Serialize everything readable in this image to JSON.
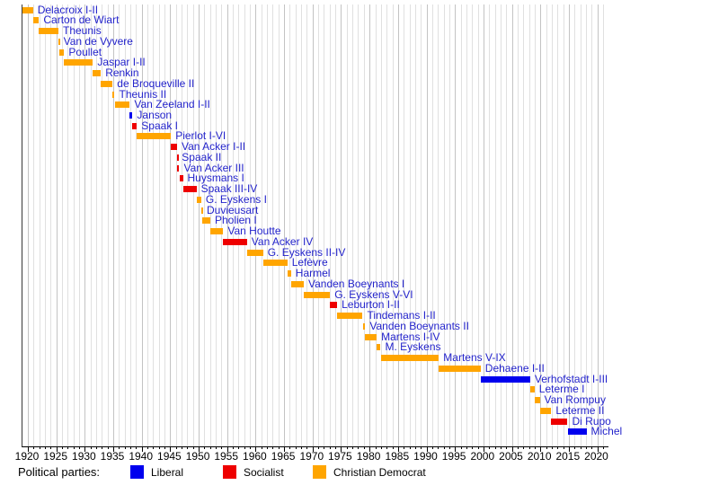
{
  "chart_data": {
    "type": "gantt",
    "title": "",
    "xlabel": "",
    "ylabel": "",
    "xlim": [
      1919.05,
      2021.97
    ],
    "grid": "vertical, every year; darker every 5 years",
    "x_tick_labels": [
      1920,
      1925,
      1930,
      1935,
      1940,
      1945,
      1950,
      1955,
      1960,
      1965,
      1970,
      1975,
      1980,
      1985,
      1990,
      1995,
      2000,
      2005,
      2010,
      2015,
      2020
    ],
    "x_minor_tick_interval_years": 1,
    "party_colors": {
      "Liberal": "#0000ee",
      "Socialist": "#ee0000",
      "Christian Democrat": "#ffa500"
    },
    "bar_label_color": "#2323cb",
    "legend": {
      "title": "Political parties:",
      "position": "bottom",
      "entries": [
        {
          "label": "Liberal",
          "color": "#0000ee"
        },
        {
          "label": "Socialist",
          "color": "#ee0000"
        },
        {
          "label": "Christian Democrat",
          "color": "#ffa500"
        }
      ]
    },
    "governments": [
      {
        "label": "Delacroix I-II",
        "party": "Christian Democrat",
        "start": 1918.89,
        "end": 1920.89
      },
      {
        "label": "Carton de Wiart",
        "party": "Christian Democrat",
        "start": 1920.89,
        "end": 1921.96
      },
      {
        "label": "Theunis",
        "party": "Christian Democrat",
        "start": 1921.96,
        "end": 1925.36
      },
      {
        "label": "Van de Vyvere",
        "party": "Christian Democrat",
        "start": 1925.36,
        "end": 1925.46
      },
      {
        "label": "Poullet",
        "party": "Christian Democrat",
        "start": 1925.46,
        "end": 1926.38
      },
      {
        "label": "Jaspar I-II",
        "party": "Christian Democrat",
        "start": 1926.38,
        "end": 1931.43
      },
      {
        "label": "Renkin",
        "party": "Christian Democrat",
        "start": 1931.43,
        "end": 1932.81
      },
      {
        "label": "de Broqueville II",
        "party": "Christian Democrat",
        "start": 1932.81,
        "end": 1934.89
      },
      {
        "label": "Theunis II",
        "party": "Christian Democrat",
        "start": 1934.89,
        "end": 1935.23
      },
      {
        "label": "Van Zeeland I-II",
        "party": "Christian Democrat",
        "start": 1935.23,
        "end": 1937.9
      },
      {
        "label": "Janson",
        "party": "Liberal",
        "start": 1937.9,
        "end": 1938.37
      },
      {
        "label": "Spaak I",
        "party": "Socialist",
        "start": 1938.37,
        "end": 1939.15
      },
      {
        "label": "Pierlot I-VI",
        "party": "Christian Democrat",
        "start": 1939.15,
        "end": 1945.12
      },
      {
        "label": "Van Acker I-II",
        "party": "Socialist",
        "start": 1945.12,
        "end": 1946.2
      },
      {
        "label": "Spaak II",
        "party": "Socialist",
        "start": 1946.2,
        "end": 1946.25
      },
      {
        "label": "Van Acker III",
        "party": "Socialist",
        "start": 1946.25,
        "end": 1946.59
      },
      {
        "label": "Huysmans I",
        "party": "Socialist",
        "start": 1946.59,
        "end": 1947.22
      },
      {
        "label": "Spaak III-IV",
        "party": "Socialist",
        "start": 1947.22,
        "end": 1949.61
      },
      {
        "label": "G. Eyskens I",
        "party": "Christian Democrat",
        "start": 1949.61,
        "end": 1950.44
      },
      {
        "label": "Duvieusart",
        "party": "Christian Democrat",
        "start": 1950.44,
        "end": 1950.62
      },
      {
        "label": "Pholien I",
        "party": "Christian Democrat",
        "start": 1950.62,
        "end": 1952.04
      },
      {
        "label": "Van Houtte",
        "party": "Christian Democrat",
        "start": 1952.04,
        "end": 1954.31
      },
      {
        "label": "Van Acker IV",
        "party": "Socialist",
        "start": 1954.31,
        "end": 1958.48
      },
      {
        "label": "G. Eyskens II-IV",
        "party": "Christian Democrat",
        "start": 1958.48,
        "end": 1961.31
      },
      {
        "label": "Lefèvre",
        "party": "Christian Democrat",
        "start": 1961.31,
        "end": 1965.57
      },
      {
        "label": "Harmel",
        "party": "Christian Democrat",
        "start": 1965.57,
        "end": 1966.21
      },
      {
        "label": "Vanden Boeynants I",
        "party": "Christian Democrat",
        "start": 1966.21,
        "end": 1968.46
      },
      {
        "label": "G. Eyskens V-VI",
        "party": "Christian Democrat",
        "start": 1968.46,
        "end": 1973.07
      },
      {
        "label": "Leburton I-II",
        "party": "Socialist",
        "start": 1973.07,
        "end": 1974.31
      },
      {
        "label": "Tindemans I-II",
        "party": "Christian Democrat",
        "start": 1974.31,
        "end": 1978.8
      },
      {
        "label": "Vanden Boeynants II",
        "party": "Christian Democrat",
        "start": 1978.8,
        "end": 1979.25
      },
      {
        "label": "Martens I-IV",
        "party": "Christian Democrat",
        "start": 1979.25,
        "end": 1981.26
      },
      {
        "label": "M. Eyskens",
        "party": "Christian Democrat",
        "start": 1981.26,
        "end": 1981.96
      },
      {
        "label": "Martens V-IX",
        "party": "Christian Democrat",
        "start": 1981.96,
        "end": 1992.18
      },
      {
        "label": "Dehaene I-II",
        "party": "Christian Democrat",
        "start": 1992.18,
        "end": 1999.53
      },
      {
        "label": "Verhofstadt I-III",
        "party": "Liberal",
        "start": 1999.53,
        "end": 2008.22
      },
      {
        "label": "Leterme I",
        "party": "Christian Democrat",
        "start": 2008.22,
        "end": 2008.99
      },
      {
        "label": "Van Rompuy",
        "party": "Christian Democrat",
        "start": 2008.99,
        "end": 2009.9
      },
      {
        "label": "Leterme II",
        "party": "Christian Democrat",
        "start": 2009.9,
        "end": 2011.93
      },
      {
        "label": "Di Rupo",
        "party": "Socialist",
        "start": 2011.93,
        "end": 2014.78
      },
      {
        "label": "Michel",
        "party": "Liberal",
        "start": 2014.78,
        "end": 2018.1
      }
    ]
  }
}
